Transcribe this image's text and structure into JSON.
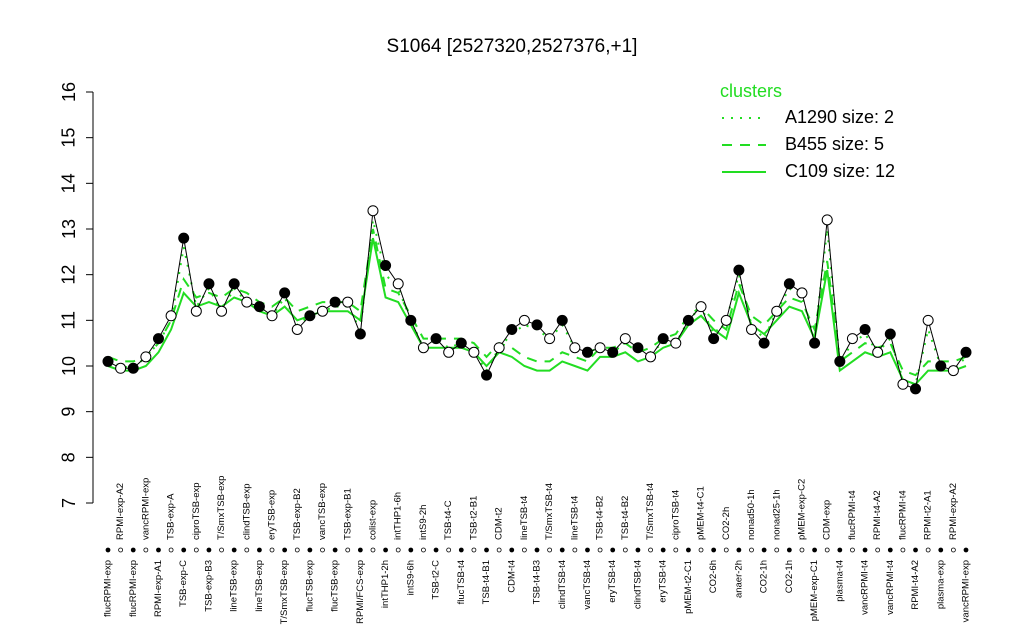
{
  "chart_data": {
    "type": "line",
    "title": "S1064 [2527320,2527376,+1]",
    "categories": [
      "flucRPMI-exp",
      "RPMI-exp-A2",
      "flucRPMI-exp",
      "vancRPMI-exp",
      "RPMI-exp-A1",
      "TSB-exp-A",
      "TSB-exp-C",
      "ciproTSB-exp",
      "TSB-exp-B3",
      "T/SmxTSB-exp",
      "lineTSB-exp",
      "clindTSB-exp",
      "lineTSB-exp",
      "eryTSB-exp",
      "T/SmxTSB-exp",
      "TSB-exp-B2",
      "flucTSB-exp",
      "vancTSB-exp",
      "flucTSB-exp",
      "TSB-exp-B1",
      "RPMI/FCS-exp",
      "colist-exp",
      "intTHP1-2h",
      "intTHP1-6h",
      "intS9-6h",
      "intS9-2h",
      "TSB-t2-C",
      "TSB-t4-C",
      "flucTSB-t4",
      "TSB-t2-B1",
      "TSB-t4-B1",
      "CDM-t2",
      "CDM-t4",
      "lineTSB-t4",
      "TSB-t4-B3",
      "T/SmxTSB-t4",
      "clindTSB-t4",
      "lineTSB-t4",
      "vancTSB-t4",
      "TSB-t4-B2",
      "eryTSB-t4",
      "TSB-t4-B2",
      "clindTSB-t4",
      "T/SmxTSB-t4",
      "eryTSB-t4",
      "ciproTSB-t4",
      "pMEM-t2-C1",
      "pMEM-t4-C1",
      "CO2-6h",
      "CO2-2h",
      "anaer-2h",
      "nonad50-1h",
      "CO2-1h",
      "nonad25-1h",
      "CO2-1h",
      "pMEM-exp-C2",
      "pMEM-exp-C1",
      "CDM-exp",
      "plasma-t4",
      "flucRPMI-t4",
      "vancRPMI-t4",
      "RPMI-t4-A2",
      "vancRPMI-t4",
      "flucRPMI-t4",
      "RPMI-t4-A2",
      "RPMI-t2-A1",
      "plasma-exp",
      "RPMI-exp-A2",
      "vancRPMI-exp"
    ],
    "values": [
      10.1,
      9.95,
      9.95,
      10.2,
      10.6,
      11.1,
      12.8,
      11.2,
      11.8,
      11.2,
      11.8,
      11.4,
      11.3,
      11.1,
      11.6,
      10.8,
      11.1,
      11.2,
      11.4,
      11.4,
      10.7,
      13.4,
      12.2,
      11.8,
      11.0,
      10.4,
      10.6,
      10.3,
      10.5,
      10.3,
      9.8,
      10.4,
      10.8,
      11.0,
      10.9,
      10.6,
      11.0,
      10.4,
      10.3,
      10.4,
      10.3,
      10.6,
      10.4,
      10.2,
      10.6,
      10.5,
      11.0,
      11.3,
      10.6,
      11.0,
      12.1,
      10.8,
      10.5,
      11.2,
      11.8,
      11.6,
      10.5,
      13.2,
      10.1,
      10.6,
      10.8,
      10.3,
      10.7,
      9.6,
      9.5,
      11.0,
      10.0,
      9.9,
      10.3
    ],
    "color": "#000000",
    "legend_title": "clusters",
    "series": [
      {
        "name": "A1290 size: 2",
        "color": "#22dd22",
        "dash": "dotted",
        "values": [
          10.1,
          10.0,
          9.95,
          10.2,
          10.5,
          11.0,
          12.6,
          11.3,
          11.7,
          11.2,
          11.7,
          11.4,
          11.3,
          11.1,
          11.5,
          10.9,
          11.1,
          11.2,
          11.3,
          11.3,
          10.8,
          13.2,
          12.0,
          11.7,
          11.0,
          10.4,
          10.6,
          10.4,
          10.5,
          10.3,
          9.9,
          10.4,
          10.7,
          10.9,
          10.8,
          10.6,
          10.9,
          10.4,
          10.3,
          10.4,
          10.3,
          10.5,
          10.4,
          10.3,
          10.5,
          10.5,
          11.0,
          11.3,
          10.7,
          11.0,
          12.0,
          10.9,
          10.6,
          11.2,
          11.7,
          11.5,
          10.6,
          13.0,
          10.1,
          10.5,
          10.7,
          10.3,
          10.6,
          9.7,
          9.6,
          10.8,
          10.0,
          9.9,
          10.2
        ]
      },
      {
        "name": "B455 size: 5",
        "color": "#22dd22",
        "dash": "dashed",
        "values": [
          10.2,
          10.1,
          10.1,
          10.2,
          10.5,
          11.0,
          11.9,
          11.5,
          11.6,
          11.5,
          11.7,
          11.6,
          11.4,
          11.3,
          11.5,
          11.2,
          11.3,
          11.4,
          11.4,
          11.4,
          11.2,
          13.0,
          11.7,
          11.6,
          11.1,
          10.6,
          10.6,
          10.6,
          10.6,
          10.5,
          10.2,
          10.5,
          10.4,
          10.2,
          10.1,
          10.1,
          10.3,
          10.2,
          10.1,
          10.4,
          10.4,
          10.5,
          10.3,
          10.4,
          10.6,
          10.7,
          11.1,
          11.3,
          11.0,
          10.8,
          11.8,
          11.1,
          10.9,
          11.2,
          11.5,
          11.4,
          10.8,
          12.3,
          10.1,
          10.3,
          10.5,
          10.4,
          10.5,
          9.9,
          9.8,
          10.1,
          10.1,
          10.1,
          10.2
        ]
      },
      {
        "name": "C109 size: 12",
        "color": "#22dd22",
        "dash": "solid",
        "values": [
          10.0,
          9.9,
          9.9,
          10.0,
          10.3,
          10.8,
          11.6,
          11.3,
          11.4,
          11.3,
          11.5,
          11.4,
          11.2,
          11.1,
          11.3,
          11.0,
          11.1,
          11.2,
          11.2,
          11.2,
          11.0,
          12.8,
          11.5,
          11.4,
          10.9,
          10.4,
          10.4,
          10.4,
          10.4,
          10.3,
          10.0,
          10.3,
          10.2,
          10.0,
          9.9,
          9.9,
          10.1,
          10.0,
          9.9,
          10.2,
          10.2,
          10.3,
          10.1,
          10.2,
          10.4,
          10.5,
          10.9,
          11.1,
          10.8,
          10.6,
          11.6,
          10.9,
          10.7,
          11.0,
          11.3,
          11.2,
          10.6,
          12.1,
          9.9,
          10.1,
          10.3,
          10.2,
          10.3,
          9.7,
          9.6,
          9.9,
          9.9,
          9.9,
          10.0
        ]
      }
    ],
    "ylim": [
      7,
      16
    ],
    "yticks": [
      7,
      8,
      9,
      10,
      11,
      12,
      13,
      14,
      15,
      16
    ],
    "legend": "topright"
  }
}
